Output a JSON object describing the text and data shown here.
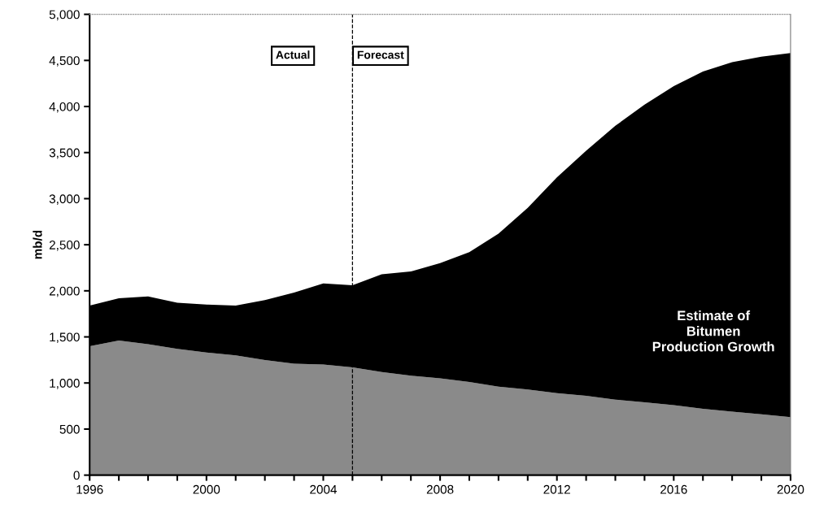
{
  "chart_data": {
    "type": "area",
    "stacked": true,
    "ylabel": "mb/d",
    "x": [
      1996,
      1997,
      1998,
      1999,
      2000,
      2001,
      2002,
      2003,
      2004,
      2005,
      2006,
      2007,
      2008,
      2009,
      2010,
      2011,
      2012,
      2013,
      2014,
      2015,
      2016,
      2017,
      2018,
      2019,
      2020
    ],
    "series": [
      {
        "color": "#8a8a8a",
        "values": [
          1400,
          1460,
          1420,
          1370,
          1330,
          1300,
          1250,
          1210,
          1200,
          1170,
          1120,
          1080,
          1050,
          1010,
          960,
          930,
          890,
          860,
          820,
          790,
          760,
          720,
          690,
          660,
          630
        ]
      },
      {
        "color": "#000000",
        "values": [
          440,
          460,
          520,
          500,
          520,
          540,
          650,
          770,
          880,
          890,
          1060,
          1130,
          1250,
          1410,
          1660,
          1970,
          2340,
          2660,
          2970,
          3230,
          3460,
          3660,
          3790,
          3880,
          3950
        ]
      }
    ],
    "xlim": [
      1996,
      2020
    ],
    "xticks": [
      1996,
      {
        "value": 1997,
        "label": null
      },
      {
        "value": 1998,
        "label": null
      },
      {
        "value": 1999,
        "label": null
      },
      2000,
      {
        "value": 2001,
        "label": null
      },
      {
        "value": 2002,
        "label": null
      },
      {
        "value": 2003,
        "label": null
      },
      2004,
      {
        "value": 2005,
        "label": null
      },
      {
        "value": 2006,
        "label": null
      },
      {
        "value": 2007,
        "label": null
      },
      2008,
      {
        "value": 2009,
        "label": null
      },
      {
        "value": 2010,
        "label": null
      },
      {
        "value": 2011,
        "label": null
      },
      2012,
      {
        "value": 2013,
        "label": null
      },
      {
        "value": 2014,
        "label": null
      },
      {
        "value": 2015,
        "label": null
      },
      2016,
      {
        "value": 2017,
        "label": null
      },
      {
        "value": 2018,
        "label": null
      },
      {
        "value": 2019,
        "label": null
      },
      2020
    ],
    "ylim": [
      0,
      5000
    ],
    "yticks": [
      0,
      500,
      {
        "value": 1000,
        "label": "1,000"
      },
      {
        "value": 1500,
        "label": "1,500"
      },
      {
        "value": 2000,
        "label": "2,000"
      },
      {
        "value": 2500,
        "label": "2,500"
      },
      {
        "value": 3000,
        "label": "3,000"
      },
      {
        "value": 3500,
        "label": "3,500"
      },
      {
        "value": 4000,
        "label": "4,000"
      },
      {
        "value": 4500,
        "label": "4,500"
      },
      {
        "value": 5000,
        "label": "5,000"
      }
    ],
    "ref_lines": [
      {
        "axis": "x",
        "value": 2005,
        "label": null,
        "color": "#000000",
        "line_style": "dashed"
      }
    ],
    "annotations": [
      "Actual",
      "Forecast",
      "Estimate of\nBitumen\nProduction Growth"
    ],
    "grid": false
  }
}
